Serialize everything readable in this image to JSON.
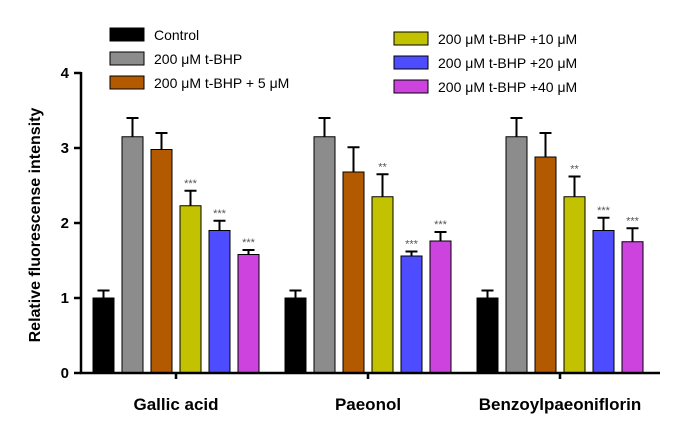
{
  "chart_data": {
    "type": "bar",
    "categories": [
      "Gallic acid",
      "Paeonol",
      "Benzoylpaeoniflorin"
    ],
    "ylabel": "Relative fluorescense intensity",
    "xlabel": "",
    "ylim": [
      0,
      4
    ],
    "yticks": [
      "0",
      "1",
      "2",
      "3",
      "4"
    ],
    "series": [
      {
        "name": "Control",
        "color": "#000000",
        "values": [
          1.0,
          1.0,
          1.0
        ],
        "errors": [
          0.1,
          0.1,
          0.1
        ],
        "sig": [
          "",
          "",
          ""
        ]
      },
      {
        "name": "200 μM  t-BHP",
        "color": "#8c8c8c",
        "values": [
          3.15,
          3.15,
          3.15
        ],
        "errors": [
          0.25,
          0.25,
          0.25
        ],
        "sig": [
          "",
          "",
          ""
        ]
      },
      {
        "name": "200 μM  t-BHP + 5 μM",
        "color": "#b35900",
        "values": [
          2.98,
          2.68,
          2.88
        ],
        "errors": [
          0.22,
          0.33,
          0.32
        ],
        "sig": [
          "",
          "",
          ""
        ]
      },
      {
        "name": "200 μM  t-BHP +10 μM",
        "color": "#c2c200",
        "values": [
          2.23,
          2.35,
          2.35
        ],
        "errors": [
          0.2,
          0.3,
          0.27
        ],
        "sig": [
          "***",
          "**",
          "**"
        ]
      },
      {
        "name": "200 μM  t-BHP +20 μM",
        "color": "#4d4dff",
        "values": [
          1.9,
          1.56,
          1.9
        ],
        "errors": [
          0.13,
          0.06,
          0.17
        ],
        "sig": [
          "***",
          "***",
          "***"
        ]
      },
      {
        "name": "200 μM  t-BHP +40 μM",
        "color": "#cc44dd",
        "values": [
          1.58,
          1.76,
          1.75
        ],
        "errors": [
          0.06,
          0.12,
          0.18
        ],
        "sig": [
          "***",
          "***",
          "***"
        ]
      }
    ],
    "grid": false,
    "legend_position": "top"
  }
}
